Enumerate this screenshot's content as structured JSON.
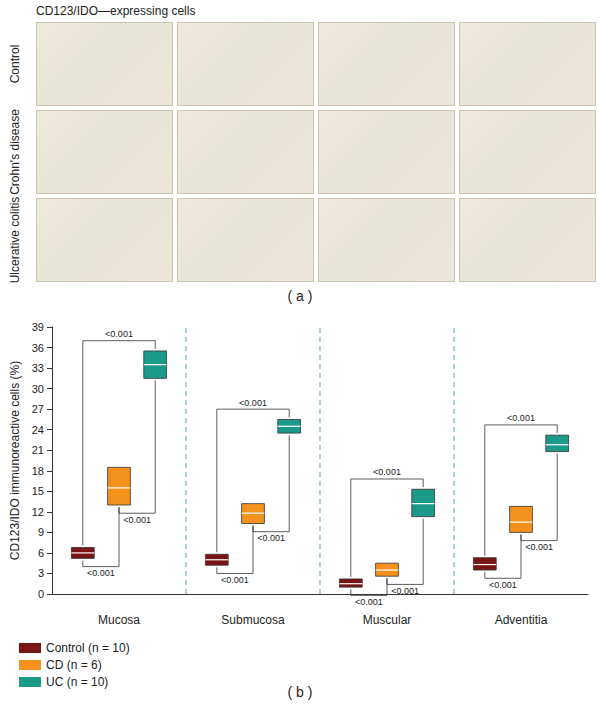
{
  "panel_a": {
    "title": "CD123/IDO—expressing cells",
    "rows": [
      "Control",
      "Crohn's disease",
      "Ulcerative colitis"
    ],
    "columns": 4,
    "label": "( a )"
  },
  "chart_data": {
    "type": "box",
    "y_label": "CD123/IDO immunoreactive cells (%)",
    "categories": [
      "Mucosa",
      "Submucosa",
      "Muscular",
      "Adventitia"
    ],
    "series": [
      {
        "name": "Control (n = 10)",
        "color": "#7a1515",
        "boxes": [
          [
            5.2,
            6.0,
            6.8
          ],
          [
            4.2,
            5.0,
            5.8
          ],
          [
            1.0,
            1.5,
            2.2
          ],
          [
            3.5,
            4.3,
            5.3
          ]
        ]
      },
      {
        "name": "CD (n = 6)",
        "color": "#f5921e",
        "boxes": [
          [
            13.0,
            15.5,
            18.5
          ],
          [
            10.3,
            11.8,
            13.2
          ],
          [
            2.6,
            3.5,
            4.5
          ],
          [
            9.0,
            10.5,
            12.8
          ]
        ]
      },
      {
        "name": "UC (n = 10)",
        "color": "#1b9a8a",
        "boxes": [
          [
            31.5,
            33.5,
            35.5
          ],
          [
            23.5,
            24.5,
            25.5
          ],
          [
            11.3,
            13.2,
            15.3
          ],
          [
            20.8,
            21.8,
            23.2
          ]
        ]
      }
    ],
    "ylim": [
      0,
      39
    ],
    "yticks": [
      0,
      3,
      6,
      9,
      12,
      15,
      18,
      21,
      24,
      27,
      30,
      33,
      36,
      39
    ],
    "grid": false,
    "legend": "lower left",
    "comparisons": [
      {
        "category": "Mucosa",
        "between": [
          "Control (n = 10)",
          "UC (n = 10)"
        ],
        "label": "<0.001"
      },
      {
        "category": "Mucosa",
        "between": [
          "Control (n = 10)",
          "CD (n = 6)"
        ],
        "label": "<0.001"
      },
      {
        "category": "Mucosa",
        "between": [
          "CD (n = 6)",
          "UC (n = 10)"
        ],
        "label": "<0.001"
      },
      {
        "category": "Submucosa",
        "between": [
          "Control (n = 10)",
          "UC (n = 10)"
        ],
        "label": "<0.001"
      },
      {
        "category": "Submucosa",
        "between": [
          "Control (n = 10)",
          "CD (n = 6)"
        ],
        "label": "<0.001"
      },
      {
        "category": "Submucosa",
        "between": [
          "CD (n = 6)",
          "UC (n = 10)"
        ],
        "label": "<0.001"
      },
      {
        "category": "Muscular",
        "between": [
          "Control (n = 10)",
          "UC (n = 10)"
        ],
        "label": "<0.001"
      },
      {
        "category": "Muscular",
        "between": [
          "Control (n = 10)",
          "CD (n = 6)"
        ],
        "label": "<0.001"
      },
      {
        "category": "Muscular",
        "between": [
          "CD (n = 6)",
          "UC (n = 10)"
        ],
        "label": "<0.001"
      },
      {
        "category": "Adventitia",
        "between": [
          "Control (n = 10)",
          "UC (n = 10)"
        ],
        "label": "<0.001"
      },
      {
        "category": "Adventitia",
        "between": [
          "Control (n = 10)",
          "CD (n = 6)"
        ],
        "label": "<0.001"
      },
      {
        "category": "Adventitia",
        "between": [
          "CD (n = 6)",
          "UC (n = 10)"
        ],
        "label": "<0.001"
      }
    ],
    "panel_label": "( b )"
  }
}
